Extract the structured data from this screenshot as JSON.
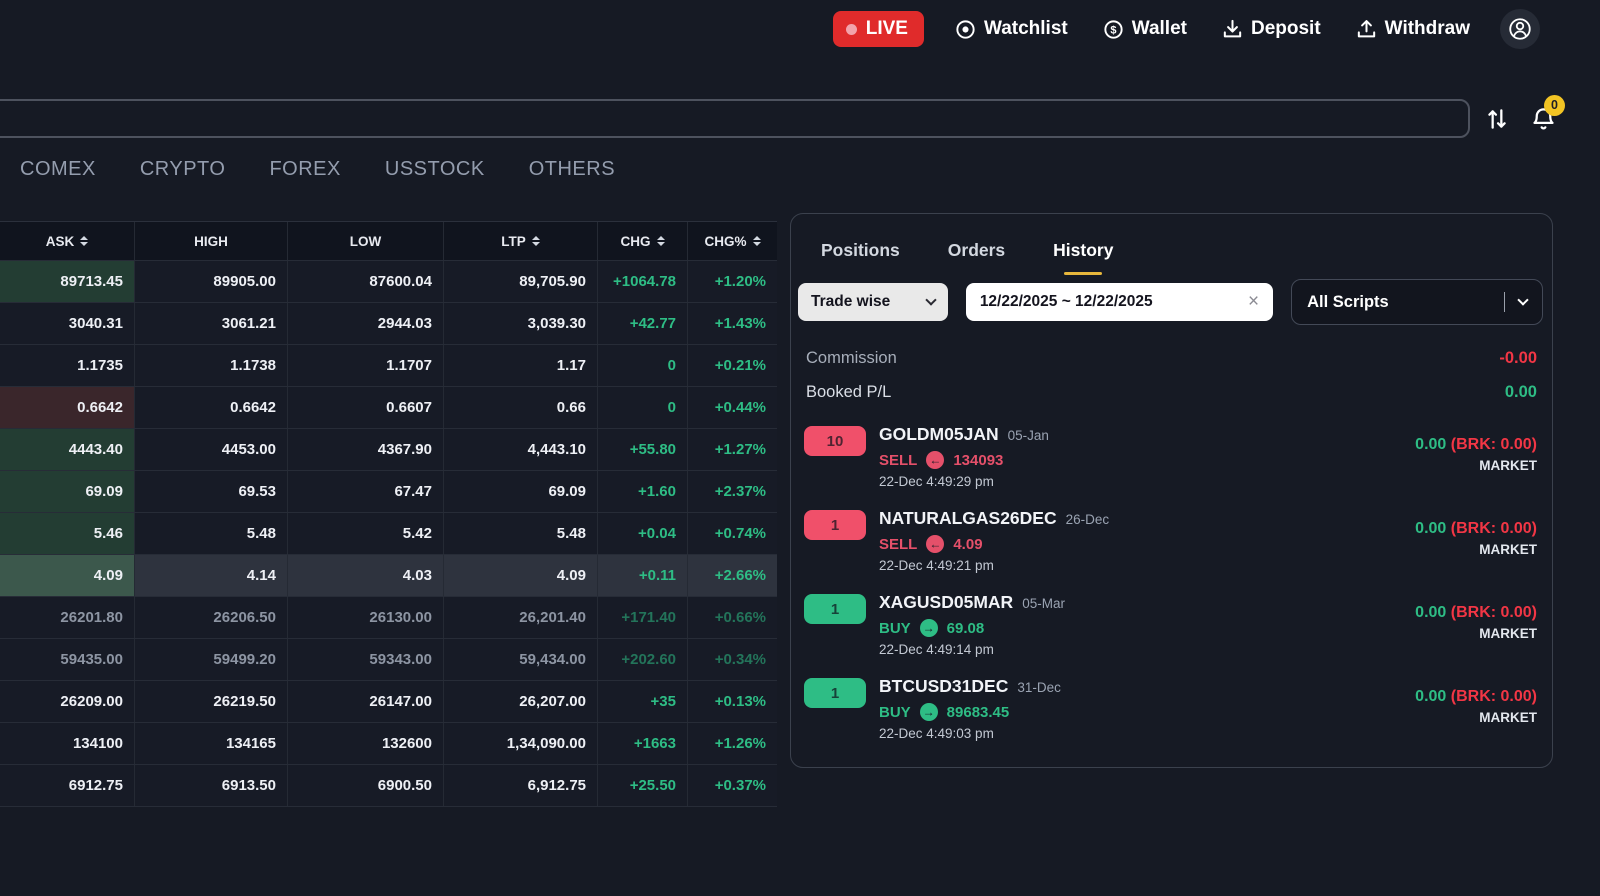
{
  "colors": {
    "background": "#161a24",
    "accent_yellow": "#e7b73c",
    "green": "#2ebd85",
    "red": "#f23645",
    "sell_pink": "#f0506a",
    "live_red": "#e02b2b",
    "badge_yellow": "#f2c424"
  },
  "topbar": {
    "live_label": "LIVE",
    "nav": [
      {
        "label": "Watchlist",
        "icon": "watchlist-icon"
      },
      {
        "label": "Wallet",
        "icon": "wallet-icon"
      },
      {
        "label": "Deposit",
        "icon": "deposit-icon"
      },
      {
        "label": "Withdraw",
        "icon": "withdraw-icon"
      }
    ],
    "profile_icon": "user-avatar-icon"
  },
  "search": {
    "value": "",
    "placeholder": "",
    "sort_icon": "up-down-arrows-icon",
    "bell_icon": "bell-icon",
    "notification_count": "0"
  },
  "market_tabs": [
    "COMEX",
    "CRYPTO",
    "FOREX",
    "USSTOCK",
    "OTHERS"
  ],
  "watch_table": {
    "columns": [
      {
        "label": "ASK",
        "sortable": true
      },
      {
        "label": "HIGH",
        "sortable": false
      },
      {
        "label": "LOW",
        "sortable": false
      },
      {
        "label": "LTP",
        "sortable": true
      },
      {
        "label": "CHG",
        "sortable": true
      },
      {
        "label": "CHG%",
        "sortable": true
      }
    ],
    "rows": [
      {
        "ask": "89713.45",
        "high": "89905.00",
        "low": "87600.04",
        "ltp": "89,705.90",
        "chg": "+1064.78",
        "chgp": "+1.20%",
        "ask_bg": "green",
        "dim": false,
        "selected": false
      },
      {
        "ask": "3040.31",
        "high": "3061.21",
        "low": "2944.03",
        "ltp": "3,039.30",
        "chg": "+42.77",
        "chgp": "+1.43%",
        "ask_bg": "none",
        "dim": false,
        "selected": false
      },
      {
        "ask": "1.1735",
        "high": "1.1738",
        "low": "1.1707",
        "ltp": "1.17",
        "chg": "0",
        "chgp": "+0.21%",
        "ask_bg": "none",
        "dim": false,
        "selected": false
      },
      {
        "ask": "0.6642",
        "high": "0.6642",
        "low": "0.6607",
        "ltp": "0.66",
        "chg": "0",
        "chgp": "+0.44%",
        "ask_bg": "red",
        "dim": false,
        "selected": false
      },
      {
        "ask": "4443.40",
        "high": "4453.00",
        "low": "4367.90",
        "ltp": "4,443.10",
        "chg": "+55.80",
        "chgp": "+1.27%",
        "ask_bg": "green",
        "dim": false,
        "selected": false
      },
      {
        "ask": "69.09",
        "high": "69.53",
        "low": "67.47",
        "ltp": "69.09",
        "chg": "+1.60",
        "chgp": "+2.37%",
        "ask_bg": "green",
        "dim": false,
        "selected": false
      },
      {
        "ask": "5.46",
        "high": "5.48",
        "low": "5.42",
        "ltp": "5.48",
        "chg": "+0.04",
        "chgp": "+0.74%",
        "ask_bg": "green",
        "dim": false,
        "selected": false
      },
      {
        "ask": "4.09",
        "high": "4.14",
        "low": "4.03",
        "ltp": "4.09",
        "chg": "+0.11",
        "chgp": "+2.66%",
        "ask_bg": "green",
        "dim": false,
        "selected": true
      },
      {
        "ask": "26201.80",
        "high": "26206.50",
        "low": "26130.00",
        "ltp": "26,201.40",
        "chg": "+171.40",
        "chgp": "+0.66%",
        "ask_bg": "none",
        "dim": true,
        "selected": false
      },
      {
        "ask": "59435.00",
        "high": "59499.20",
        "low": "59343.00",
        "ltp": "59,434.00",
        "chg": "+202.60",
        "chgp": "+0.34%",
        "ask_bg": "none",
        "dim": true,
        "selected": false
      },
      {
        "ask": "26209.00",
        "high": "26219.50",
        "low": "26147.00",
        "ltp": "26,207.00",
        "chg": "+35",
        "chgp": "+0.13%",
        "ask_bg": "none",
        "dim": false,
        "selected": false
      },
      {
        "ask": "134100",
        "high": "134165",
        "low": "132600",
        "ltp": "1,34,090.00",
        "chg": "+1663",
        "chgp": "+1.26%",
        "ask_bg": "none",
        "dim": false,
        "selected": false
      },
      {
        "ask": "6912.75",
        "high": "6913.50",
        "low": "6900.50",
        "ltp": "6,912.75",
        "chg": "+25.50",
        "chgp": "+0.37%",
        "ask_bg": "none",
        "dim": false,
        "selected": false
      }
    ]
  },
  "panel": {
    "tabs": [
      {
        "label": "Positions",
        "active": false
      },
      {
        "label": "Orders",
        "active": false
      },
      {
        "label": "History",
        "active": true
      }
    ],
    "filters": {
      "trade_wise": "Trade wise",
      "date_range": "12/22/2025 ~ 12/22/2025",
      "clear_icon": "close-icon",
      "scripts": "All Scripts"
    },
    "summary": [
      {
        "label": "Commission",
        "value": "-0.00",
        "color": "red"
      },
      {
        "label": "Booked P/L",
        "value": "0.00",
        "color": "green"
      }
    ],
    "trades": [
      {
        "qty": "10",
        "side": "SELL",
        "symbol": "GOLDM05JAN",
        "expiry": "05-Jan",
        "price": "134093",
        "time": "22-Dec 4:49:29 pm",
        "pl": "0.00",
        "brk": "(BRK: 0.00)",
        "order_type": "MARKET"
      },
      {
        "qty": "1",
        "side": "SELL",
        "symbol": "NATURALGAS26DEC",
        "expiry": "26-Dec",
        "price": "4.09",
        "time": "22-Dec 4:49:21 pm",
        "pl": "0.00",
        "brk": "(BRK: 0.00)",
        "order_type": "MARKET"
      },
      {
        "qty": "1",
        "side": "BUY",
        "symbol": "XAGUSD05MAR",
        "expiry": "05-Mar",
        "price": "69.08",
        "time": "22-Dec 4:49:14 pm",
        "pl": "0.00",
        "brk": "(BRK: 0.00)",
        "order_type": "MARKET"
      },
      {
        "qty": "1",
        "side": "BUY",
        "symbol": "BTCUSD31DEC",
        "expiry": "31-Dec",
        "price": "89683.45",
        "time": "22-Dec 4:49:03 pm",
        "pl": "0.00",
        "brk": "(BRK: 0.00)",
        "order_type": "MARKET"
      }
    ]
  }
}
